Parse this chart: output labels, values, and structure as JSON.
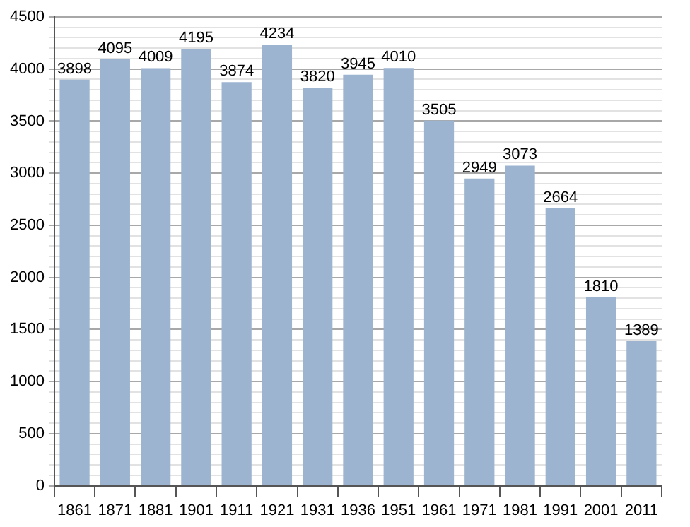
{
  "chart_data": {
    "type": "bar",
    "categories": [
      "1861",
      "1871",
      "1881",
      "1901",
      "1911",
      "1921",
      "1931",
      "1936",
      "1951",
      "1961",
      "1971",
      "1981",
      "1991",
      "2001",
      "2011"
    ],
    "values": [
      3898,
      4095,
      4009,
      4195,
      3874,
      4234,
      3820,
      3945,
      4010,
      3505,
      2949,
      3073,
      2664,
      1810,
      1389
    ],
    "color": "#9db4d1",
    "ylim": [
      0,
      4500
    ],
    "yticks": [
      0,
      {
        "value": 100,
        "label": null
      },
      {
        "value": 200,
        "label": null
      },
      {
        "value": 300,
        "label": null
      },
      {
        "value": 400,
        "label": null
      },
      500,
      {
        "value": 600,
        "label": null
      },
      {
        "value": 700,
        "label": null
      },
      {
        "value": 800,
        "label": null
      },
      {
        "value": 900,
        "label": null
      },
      1000,
      {
        "value": 1100,
        "label": null
      },
      {
        "value": 1200,
        "label": null
      },
      {
        "value": 1300,
        "label": null
      },
      {
        "value": 1400,
        "label": null
      },
      1500,
      {
        "value": 1600,
        "label": null
      },
      {
        "value": 1700,
        "label": null
      },
      {
        "value": 1800,
        "label": null
      },
      {
        "value": 1900,
        "label": null
      },
      2000,
      {
        "value": 2100,
        "label": null
      },
      {
        "value": 2200,
        "label": null
      },
      {
        "value": 2300,
        "label": null
      },
      {
        "value": 2400,
        "label": null
      },
      2500,
      {
        "value": 2600,
        "label": null
      },
      {
        "value": 2700,
        "label": null
      },
      {
        "value": 2800,
        "label": null
      },
      {
        "value": 2900,
        "label": null
      },
      3000,
      {
        "value": 3100,
        "label": null
      },
      {
        "value": 3200,
        "label": null
      },
      {
        "value": 3300,
        "label": null
      },
      {
        "value": 3400,
        "label": null
      },
      3500,
      {
        "value": 3600,
        "label": null
      },
      {
        "value": 3700,
        "label": null
      },
      {
        "value": 3800,
        "label": null
      },
      {
        "value": 3900,
        "label": null
      },
      4000,
      {
        "value": 4100,
        "label": null
      },
      {
        "value": 4200,
        "label": null
      },
      {
        "value": 4300,
        "label": null
      },
      {
        "value": 4400,
        "label": null
      },
      4500
    ],
    "grid": true,
    "data_labels": true
  }
}
